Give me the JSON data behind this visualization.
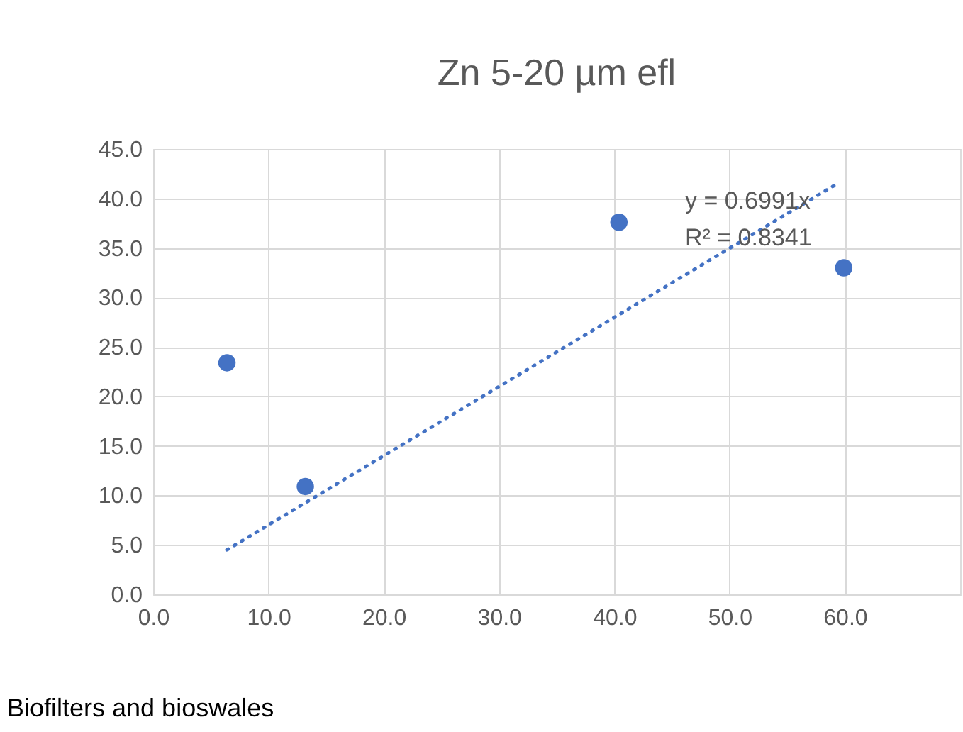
{
  "chart_data": {
    "type": "scatter",
    "title": "Zn 5-20 µm efl",
    "series": [
      {
        "color": "#4472c4",
        "marker": "circle",
        "x": [
          6.4,
          13.2,
          40.4,
          59.9
        ],
        "values": [
          23.4,
          10.9,
          37.6,
          33.0
        ]
      },
      {
        "type": "line",
        "color": "#4472c4",
        "line_style": "dotted",
        "x": [
          6.4,
          59.2
        ],
        "values": [
          4.5,
          41.4
        ]
      }
    ],
    "xlim": [
      0,
      70
    ],
    "ylim": [
      0,
      45
    ],
    "xticks": [
      {
        "value": 0,
        "label": "0.0"
      },
      {
        "value": 10,
        "label": "10.0"
      },
      {
        "value": 20,
        "label": "20.0"
      },
      {
        "value": 30,
        "label": "30.0"
      },
      {
        "value": 40,
        "label": "40.0"
      },
      {
        "value": 50,
        "label": "50.0"
      },
      {
        "value": 60,
        "label": "60.0"
      }
    ],
    "yticks": [
      {
        "value": 0,
        "label": "0.0"
      },
      {
        "value": 5,
        "label": "5.0"
      },
      {
        "value": 10,
        "label": "10.0"
      },
      {
        "value": 15,
        "label": "15.0"
      },
      {
        "value": 20,
        "label": "20.0"
      },
      {
        "value": 25,
        "label": "25.0"
      },
      {
        "value": 30,
        "label": "30.0"
      },
      {
        "value": 35,
        "label": "35.0"
      },
      {
        "value": 40,
        "label": "40.0"
      },
      {
        "value": 45,
        "label": "45.0"
      }
    ],
    "grid": true,
    "annotations": [
      "y = 0.6991x",
      "R² = 0.8341",
      "Biofilters and bioswales"
    ]
  }
}
